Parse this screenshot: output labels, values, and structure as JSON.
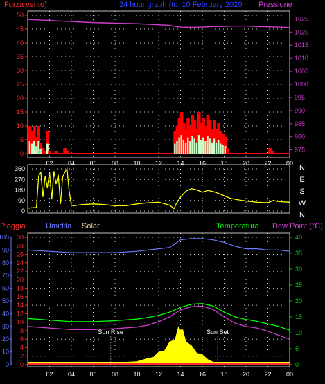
{
  "header": {
    "wind_label": "Forza vento)",
    "title": "24 hour graph (to: 10 February 2020",
    "pressure_label": "Pressione"
  },
  "lower_header": {
    "rain_label": "Pioggia",
    "humidity_label": "Umidita",
    "solar_label": "Solar",
    "temperature_label": "Temperatura",
    "dewpoint_label": "Dew Point (°C)"
  },
  "annotations": {
    "sunrise": "Sun Rise",
    "sunset": "Sun Set"
  },
  "colors": {
    "wind": "#ff0000",
    "gust": "#ff0000",
    "wind_avg": "#00ff00",
    "pressure": "#d040d0",
    "direction": "#ffff00",
    "humidity": "#6a7cff",
    "solar": "#ffff00",
    "temperature": "#00ff00",
    "dewpoint": "#d040d0",
    "rain": "#ff3030",
    "grid": "#ffffff",
    "axis_left": "#ff3030",
    "axis_right": "#d040d0",
    "axis_green": "#00d000",
    "axis_blue": "#6a7cff"
  },
  "chart_data": [
    {
      "type": "line",
      "id": "wind_pressure",
      "title": "",
      "x_ticks": [
        "02",
        "04",
        "06",
        "08",
        "10",
        "12",
        "14",
        "16",
        "18",
        "20",
        "22",
        "00"
      ],
      "xlim": [
        0,
        24
      ],
      "left_axis": {
        "label": "Forza vento)",
        "ticks": [
          0,
          5,
          10,
          15,
          20,
          25,
          30,
          35,
          40,
          45,
          50
        ],
        "ylim": [
          0,
          50
        ]
      },
      "right_axis": {
        "label": "Pressione",
        "ticks": [
          975,
          980,
          985,
          990,
          995,
          1000,
          1005,
          1010,
          1015,
          1020,
          1025
        ],
        "ylim": [
          972,
          1028
        ]
      },
      "series": [
        {
          "name": "Forza vento)",
          "axis": "left",
          "x": [
            0.2,
            0.4,
            0.6,
            0.8,
            1.0,
            1.2,
            1.4,
            1.5,
            1.8,
            2.0,
            2.2,
            2.6,
            3.0,
            3.4,
            3.6,
            3.8,
            4.2,
            4.6,
            5.0,
            5.4,
            5.8,
            6.2,
            6.6,
            7.0,
            7.4,
            7.8,
            8.2,
            8.6,
            9.0,
            9.4,
            9.8,
            10.2,
            10.6,
            11.0,
            11.4,
            11.8,
            12.2,
            12.6,
            13.0,
            13.2,
            13.5,
            13.7,
            13.9,
            14.1,
            14.3,
            14.5,
            14.7,
            14.9,
            15.1,
            15.3,
            15.5,
            15.7,
            15.9,
            16.1,
            16.3,
            16.5,
            16.7,
            16.9,
            17.1,
            17.3,
            17.5,
            17.7,
            17.9,
            18.1,
            18.3,
            18.5,
            19.0,
            20.0,
            21.0,
            22.0,
            22.2,
            22.4,
            23.0,
            24.0
          ],
          "values": [
            10,
            8,
            10,
            6,
            10,
            4,
            2,
            1,
            8,
            1,
            0,
            1,
            0,
            2,
            1,
            0,
            0,
            0,
            0,
            0,
            0,
            0,
            0,
            0,
            0,
            0,
            0,
            0,
            0,
            0,
            0,
            0,
            0,
            0,
            0,
            0,
            0,
            0,
            0,
            0,
            8,
            10,
            13,
            15,
            11,
            9,
            13,
            10,
            14,
            12,
            9,
            15,
            11,
            13,
            10,
            14,
            12,
            9,
            12,
            9,
            11,
            8,
            7,
            6,
            2,
            0,
            0,
            0,
            0,
            0,
            2,
            1,
            0,
            0
          ]
        },
        {
          "name": "Pressione",
          "axis": "right",
          "x": [
            0,
            1,
            2,
            3,
            4,
            5,
            6,
            7,
            8,
            9,
            10,
            11,
            12,
            13,
            13.5,
            14,
            15,
            16,
            17,
            18,
            19,
            20,
            21,
            22,
            23,
            24
          ],
          "values": [
            1024.8,
            1024.6,
            1024.4,
            1024.2,
            1024.0,
            1023.8,
            1023.6,
            1023.5,
            1023.4,
            1023.3,
            1023.2,
            1023.0,
            1022.8,
            1022.6,
            1022.2,
            1021.9,
            1021.8,
            1021.9,
            1022.1,
            1022.2,
            1022.3,
            1022.3,
            1022.1,
            1022.0,
            1021.9,
            1021.7
          ]
        }
      ]
    },
    {
      "type": "line",
      "id": "direction",
      "title": "",
      "xlim": [
        0,
        24
      ],
      "left_axis": {
        "ticks": [
          0,
          90,
          180,
          270,
          360
        ],
        "ylim": [
          0,
          360
        ]
      },
      "right_axis": {
        "ticks": [
          "N",
          "W",
          "S",
          "E",
          "N"
        ]
      },
      "series": [
        {
          "name": "",
          "x": [
            0,
            0.8,
            1.0,
            1.2,
            1.4,
            1.6,
            1.8,
            2.0,
            2.2,
            2.4,
            2.6,
            2.8,
            3.0,
            3.2,
            3.4,
            3.6,
            3.8,
            4.0,
            4.2,
            4.6,
            5.0,
            6.0,
            7.0,
            8.0,
            9.0,
            10.0,
            11.0,
            12.0,
            13.0,
            13.4,
            13.6,
            13.8,
            14.0,
            14.5,
            15.0,
            15.5,
            16.0,
            16.5,
            17.0,
            17.5,
            18.0,
            18.5,
            19.0,
            20.0,
            21.0,
            22.0,
            22.5,
            23.0,
            24.0
          ],
          "values": [
            25,
            30,
            300,
            330,
            120,
            300,
            200,
            330,
            100,
            340,
            230,
            310,
            60,
            290,
            330,
            360,
            170,
            50,
            45,
            50,
            55,
            60,
            55,
            45,
            45,
            60,
            70,
            75,
            50,
            20,
            60,
            90,
            120,
            170,
            190,
            180,
            160,
            175,
            165,
            150,
            130,
            110,
            100,
            85,
            75,
            70,
            90,
            80,
            75
          ]
        }
      ]
    },
    {
      "type": "line",
      "id": "temp_humidity",
      "title": "",
      "xlim": [
        0,
        24
      ],
      "rain_axis": {
        "label": "Pioggia",
        "ticks": [
          0,
          2,
          4,
          6,
          8,
          10,
          12,
          14,
          16,
          18,
          20,
          22,
          24,
          26,
          28,
          30
        ],
        "ylim": [
          0,
          30
        ]
      },
      "humidity_axis": {
        "label": "Umidita",
        "ticks": [
          0,
          10,
          20,
          30,
          40,
          50,
          60,
          70,
          80,
          90,
          100
        ],
        "ylim": [
          0,
          100
        ]
      },
      "temp_axis": {
        "label": "Temperatura",
        "ticks": [
          0,
          5,
          10,
          15,
          20,
          25,
          30,
          35,
          40
        ],
        "ylim": [
          0,
          40
        ]
      },
      "series": [
        {
          "name": "Umidita",
          "axis": "humidity",
          "x": [
            0,
            2,
            4,
            6,
            8,
            10,
            11,
            12,
            13,
            13.5,
            14,
            15,
            16,
            17,
            18,
            19,
            20,
            21,
            22,
            23,
            24
          ],
          "values": [
            90,
            89,
            88,
            88,
            88,
            89,
            90,
            91,
            92,
            95,
            98,
            99,
            99,
            98,
            96,
            93,
            91,
            91,
            90,
            90,
            89
          ]
        },
        {
          "name": "Temperatura",
          "axis": "temp",
          "x": [
            0,
            2,
            4,
            6,
            8,
            10,
            11,
            12,
            13,
            14,
            15,
            16,
            17,
            18,
            19,
            20,
            21,
            22,
            23,
            24
          ],
          "values": [
            14.5,
            14.0,
            13.5,
            13.5,
            13.8,
            14.3,
            14.8,
            15.5,
            16.5,
            18.0,
            19.0,
            19.2,
            18.4,
            16.5,
            15.0,
            14.2,
            13.6,
            12.8,
            12.0,
            10.8
          ]
        },
        {
          "name": "Dew Point (°C)",
          "axis": "temp",
          "x": [
            0,
            2,
            4,
            6,
            8,
            10,
            11,
            12,
            13,
            14,
            15,
            16,
            17,
            18,
            19,
            20,
            21,
            22,
            23,
            24
          ],
          "values": [
            12.0,
            11.5,
            11.0,
            11.0,
            11.3,
            11.8,
            12.4,
            13.5,
            15.0,
            17.2,
            18.2,
            18.4,
            17.3,
            15.0,
            13.0,
            12.0,
            11.5,
            10.5,
            9.2,
            8.0
          ]
        },
        {
          "name": "Solar",
          "axis": "humidity",
          "x": [
            7.6,
            8,
            9,
            10,
            11,
            11.5,
            12,
            12.5,
            13,
            13.5,
            13.8,
            14.0,
            14.2,
            14.5,
            15,
            15.5,
            16,
            16.5,
            17,
            17.4
          ],
          "values": [
            0,
            1,
            2,
            3,
            5,
            7,
            10,
            13,
            18,
            24,
            30,
            33,
            28,
            22,
            15,
            11,
            8,
            5,
            2,
            0
          ]
        }
      ]
    }
  ]
}
